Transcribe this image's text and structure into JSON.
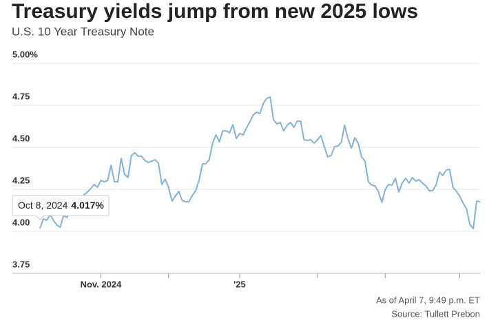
{
  "chart_data": {
    "type": "line",
    "title": "Treasury yields jump from new 2025 lows",
    "subtitle": "U.S. 10 Year Treasury Note",
    "footnote": "As of April 7, 9:49 p.m. ET",
    "source": "Source: Tullett Prebon",
    "series": [
      {
        "name": "U.S. 10 Year Treasury Note",
        "color": "#7fb2dc",
        "values": [
          4.017,
          4.074,
          4.066,
          4.098,
          4.066,
          4.037,
          4.025,
          4.094,
          4.082,
          4.139,
          4.164,
          4.18,
          4.189,
          4.217,
          4.234,
          4.254,
          4.279,
          4.262,
          4.303,
          4.295,
          4.303,
          4.393,
          4.295,
          4.295,
          4.434,
          4.34,
          4.32,
          4.451,
          4.467,
          4.447,
          4.447,
          4.422,
          4.41,
          4.418,
          4.426,
          4.406,
          4.279,
          4.311,
          4.262,
          4.18,
          4.209,
          4.238,
          4.184,
          4.176,
          4.176,
          4.213,
          4.242,
          4.303,
          4.402,
          4.402,
          4.426,
          4.525,
          4.574,
          4.533,
          4.598,
          4.598,
          4.586,
          4.635,
          4.553,
          4.582,
          4.574,
          4.615,
          4.652,
          4.693,
          4.709,
          4.701,
          4.762,
          4.791,
          4.799,
          4.664,
          4.639,
          4.648,
          4.598,
          4.631,
          4.648,
          4.619,
          4.656,
          4.656,
          4.545,
          4.541,
          4.545,
          4.525,
          4.545,
          4.57,
          4.504,
          4.443,
          4.451,
          4.504,
          4.508,
          4.529,
          4.631,
          4.549,
          4.496,
          4.557,
          4.525,
          4.443,
          4.418,
          4.295,
          4.275,
          4.27,
          4.234,
          4.172,
          4.25,
          4.279,
          4.275,
          4.316,
          4.234,
          4.287,
          4.316,
          4.287,
          4.32,
          4.299,
          4.307,
          4.287,
          4.27,
          4.242,
          4.242,
          4.275,
          4.352,
          4.332,
          4.365,
          4.369,
          4.262,
          4.238,
          4.209,
          4.168,
          4.135,
          4.041,
          4.016,
          4.18,
          4.176
        ]
      }
    ],
    "xlim": [
      0,
      130
    ],
    "xticks": [
      {
        "value": 18,
        "label": "Nov. 2024"
      },
      {
        "value": 59,
        "label": "'25"
      }
    ],
    "x_minor_ticks": [
      38,
      82,
      102,
      124
    ],
    "ylim": [
      3.75,
      5.0
    ],
    "yticks": [
      {
        "value": 3.75,
        "label": "3.75"
      },
      {
        "value": 4.0,
        "label": "4.00"
      },
      {
        "value": 4.25,
        "label": "4.25"
      },
      {
        "value": 4.5,
        "label": "4.50"
      },
      {
        "value": 4.75,
        "label": "4.75"
      },
      {
        "value": 5.0,
        "label": "5.00%"
      }
    ],
    "grid": true,
    "annotation": {
      "date": "Oct 8, 2024",
      "value": 4.017,
      "value_label": "4.017%"
    }
  }
}
